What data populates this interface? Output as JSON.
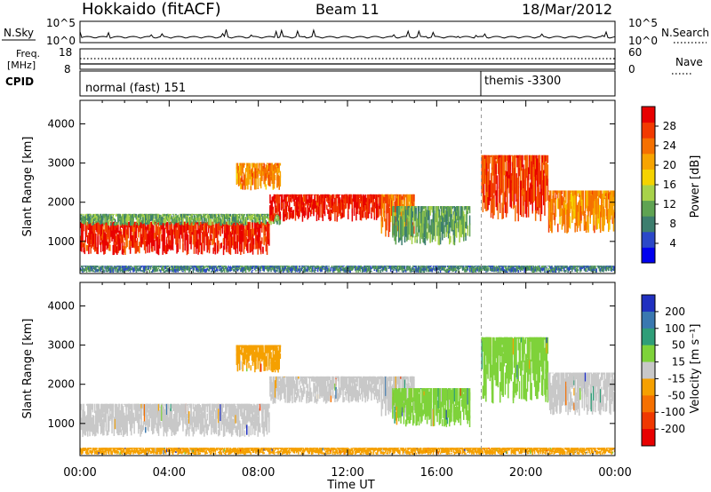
{
  "header": {
    "title": "Hokkaido (fitACF)",
    "beam": "Beam 11",
    "date": "18/Mar/2012"
  },
  "top_panels": {
    "nsky_label": "N.Sky",
    "nsky_ticks": [
      "10^5",
      "10^0"
    ],
    "nsearch_label": "N.Search",
    "nsearch_ticks": [
      "10^5",
      "10^0"
    ],
    "freq_label_1": "Freq.",
    "freq_label_2": "[MHz]",
    "freq_ticks": [
      "18",
      "8"
    ],
    "nave_label": "Nave",
    "nave_ticks": [
      "60",
      "0"
    ],
    "cpid_label": "CPID",
    "cpid_segments": [
      {
        "label": "normal (fast) 151",
        "start_hour": 0,
        "end_hour": 18
      },
      {
        "label": "themis -3300",
        "start_hour": 18,
        "end_hour": 24
      }
    ]
  },
  "chart_data": [
    {
      "type": "heatmap",
      "name": "power",
      "ylabel": "Slant Range [km]",
      "xlabel": "Time UT",
      "x_ticks": [
        "00:00",
        "04:00",
        "08:00",
        "12:00",
        "16:00",
        "20:00",
        "00:00"
      ],
      "x_range_hours": [
        0,
        24
      ],
      "y_ticks": [
        1000,
        2000,
        3000,
        4000
      ],
      "ylim": [
        180,
        4600
      ],
      "colorbar_label": "Power [dB]",
      "colorbar_ticks": [
        4,
        8,
        12,
        16,
        20,
        24,
        28
      ],
      "colorbar_range": [
        0,
        32
      ],
      "colorbar_colors": [
        "#0000ee",
        "#2b48c8",
        "#3d7e6e",
        "#5fa352",
        "#a8d24a",
        "#f5d300",
        "#f7a400",
        "#f57000",
        "#f23a00",
        "#e80000"
      ],
      "regions": [
        {
          "t0": 0,
          "t1": 8.5,
          "r0": 650,
          "r1": 1500,
          "level": 0.9
        },
        {
          "t0": 0,
          "t1": 9,
          "r0": 1400,
          "r1": 1700,
          "level": 0.35
        },
        {
          "t0": 8.5,
          "t1": 13.5,
          "r0": 1500,
          "r1": 2200,
          "level": 0.92
        },
        {
          "t0": 7,
          "t1": 9,
          "r0": 2300,
          "r1": 3000,
          "level": 0.7
        },
        {
          "t0": 13.5,
          "t1": 15,
          "r0": 1100,
          "r1": 2200,
          "level": 0.75
        },
        {
          "t0": 14,
          "t1": 17.5,
          "r0": 900,
          "r1": 1900,
          "level": 0.35
        },
        {
          "t0": 18,
          "t1": 21,
          "r0": 1500,
          "r1": 3200,
          "level": 0.85
        },
        {
          "t0": 21,
          "t1": 24,
          "r0": 1200,
          "r1": 2300,
          "level": 0.7
        },
        {
          "t0": 0,
          "t1": 24,
          "r0": 200,
          "r1": 380,
          "level": 0.25
        }
      ]
    },
    {
      "type": "heatmap",
      "name": "velocity",
      "ylabel": "Slant Range [km]",
      "xlabel": "Time UT",
      "x_ticks": [
        "00:00",
        "04:00",
        "08:00",
        "12:00",
        "16:00",
        "20:00",
        "00:00"
      ],
      "x_range_hours": [
        0,
        24
      ],
      "y_ticks": [
        1000,
        2000,
        3000,
        4000
      ],
      "ylim": [
        180,
        4600
      ],
      "colorbar_label": "Velocity [m s⁻¹]",
      "colorbar_ticks": [
        "200",
        "100",
        "50",
        "15",
        "-15",
        "-50",
        "-100",
        "-200"
      ],
      "colorbar_colors": [
        "#2030c0",
        "#3a78b0",
        "#2f9e78",
        "#7ed23a",
        "#c8c8c8",
        "#f5a000",
        "#f57000",
        "#f03800",
        "#e80000"
      ],
      "regions": [
        {
          "t0": 0,
          "t1": 8.5,
          "r0": 650,
          "r1": 1500,
          "color": "#c8c8c8"
        },
        {
          "t0": 8.5,
          "t1": 13.5,
          "r0": 1500,
          "r1": 2200,
          "color": "#c8c8c8"
        },
        {
          "t0": 13.5,
          "t1": 15,
          "r0": 1100,
          "r1": 2200,
          "color": "#c8c8c8"
        },
        {
          "t0": 14,
          "t1": 17.5,
          "r0": 900,
          "r1": 1900,
          "color": "#7ed23a"
        },
        {
          "t0": 18,
          "t1": 21,
          "r0": 1500,
          "r1": 3200,
          "color": "#7ed23a"
        },
        {
          "t0": 21,
          "t1": 24,
          "r0": 1200,
          "r1": 2300,
          "color": "#c8c8c8"
        },
        {
          "t0": 7,
          "t1": 9,
          "r0": 2300,
          "r1": 3000,
          "color": "#f5a000"
        },
        {
          "t0": 0,
          "t1": 24,
          "r0": 200,
          "r1": 380,
          "color": "#f5a000"
        }
      ]
    }
  ]
}
